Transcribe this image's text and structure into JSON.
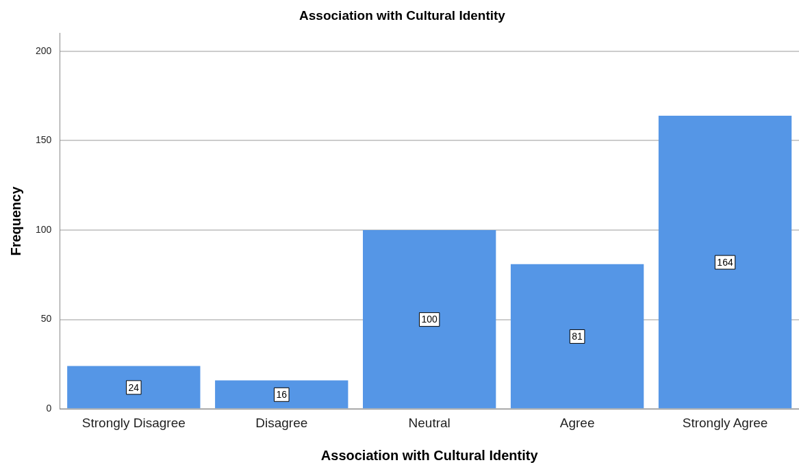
{
  "chart_data": {
    "type": "bar",
    "title": "Association with Cultural Identity",
    "xlabel": "Association with Cultural Identity",
    "ylabel": "Frequency",
    "categories": [
      "Strongly Disagree",
      "Disagree",
      "Neutral",
      "Agree",
      "Strongly Agree"
    ],
    "values": [
      24,
      16,
      100,
      81,
      164
    ],
    "color": "#5596e6",
    "ylim": [
      0,
      210
    ],
    "yticks": [
      0,
      50,
      100,
      150,
      200
    ],
    "grid": "y",
    "data_labels": true
  }
}
